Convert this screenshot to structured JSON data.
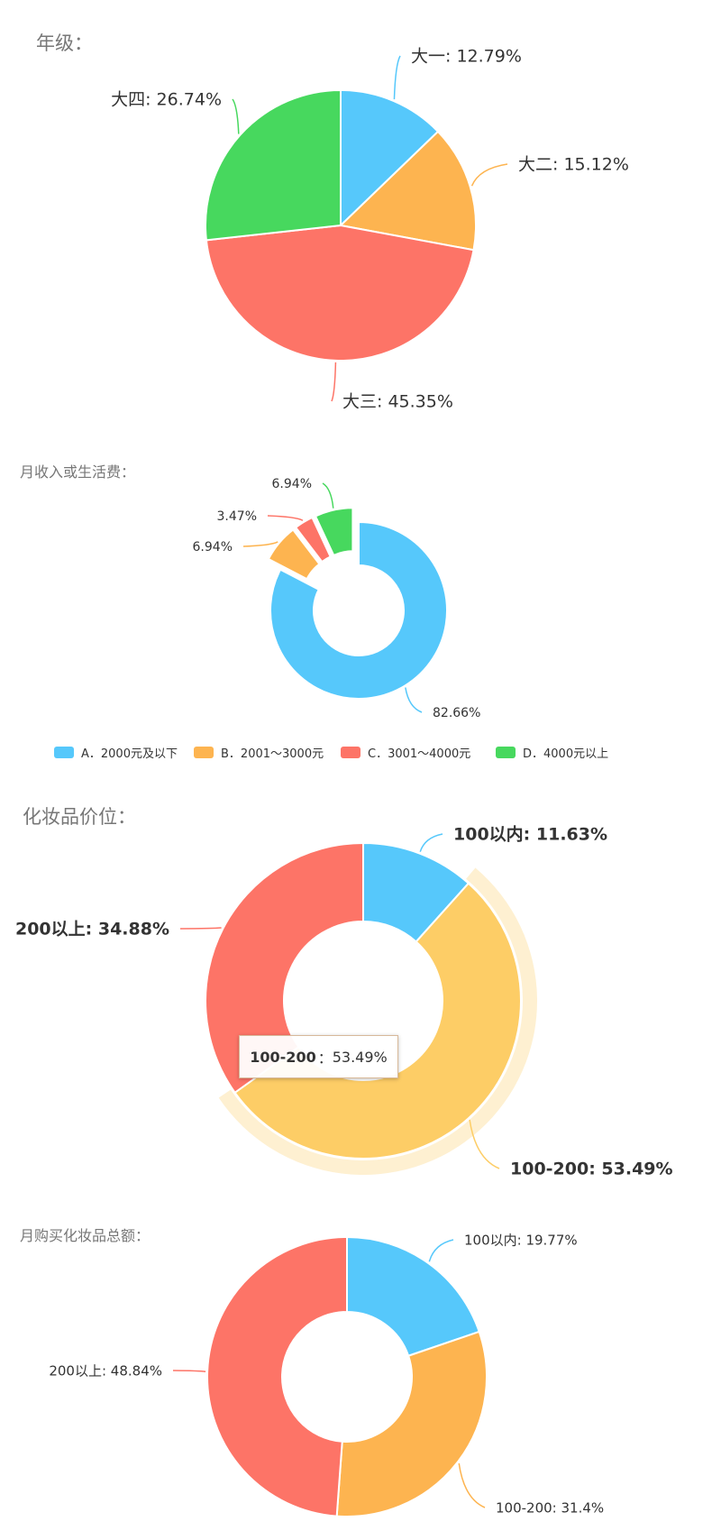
{
  "titles": {
    "grade": "年级：",
    "income": "月收入或生活费：",
    "cosmetic_price": "化妆品价位：",
    "monthly_total": "月购买化妆品总额："
  },
  "colors": {
    "blue": "#56c8fb",
    "orange": "#fdb450",
    "red": "#fd7467",
    "green": "#47d85e",
    "yellow": "#fdcd66"
  },
  "tooltip": {
    "label": "100-200",
    "separator": "：",
    "value": "53.49%"
  },
  "chart_data": [
    {
      "type": "pie",
      "title": "年级：",
      "categories": [
        "大一",
        "大二",
        "大三",
        "大四"
      ],
      "values": [
        12.79,
        15.12,
        45.35,
        26.74
      ],
      "labels": [
        "大一: 12.79%",
        "大二: 15.12%",
        "大三: 45.35%",
        "大四: 26.74%"
      ],
      "colors": [
        "#56c8fb",
        "#fdb450",
        "#fd7467",
        "#47d85e"
      ],
      "legend": false
    },
    {
      "type": "pie",
      "variant": "donut",
      "title": "月收入或生活费：",
      "categories": [
        "A．2000元及以下",
        "B．2001～3000元",
        "C．3001～4000元",
        "D．4000元以上"
      ],
      "values": [
        82.66,
        6.94,
        3.47,
        6.94
      ],
      "labels": [
        "82.66%",
        "6.94%",
        "3.47%",
        "6.94%"
      ],
      "colors": [
        "#56c8fb",
        "#fdb450",
        "#fd7467",
        "#47d85e"
      ],
      "legend": "bottom"
    },
    {
      "type": "pie",
      "variant": "donut",
      "title": "化妆品价位：",
      "categories": [
        "100以内",
        "100-200",
        "200以上"
      ],
      "values": [
        11.63,
        53.49,
        34.88
      ],
      "labels": [
        "100以内: 11.63%",
        "100-200: 53.49%",
        "200以上: 34.88%"
      ],
      "colors": [
        "#56c8fb",
        "#fdcd66",
        "#fd7467"
      ],
      "highlighted": "100-200",
      "legend": false
    },
    {
      "type": "pie",
      "variant": "donut",
      "title": "月购买化妆品总额：",
      "categories": [
        "100以内",
        "100-200",
        "200以上"
      ],
      "values": [
        19.77,
        31.4,
        48.84
      ],
      "labels": [
        "100以内: 19.77%",
        "100-200: 31.4%",
        "200以上: 48.84%"
      ],
      "colors": [
        "#56c8fb",
        "#fdb450",
        "#fd7467"
      ],
      "legend": false
    }
  ]
}
